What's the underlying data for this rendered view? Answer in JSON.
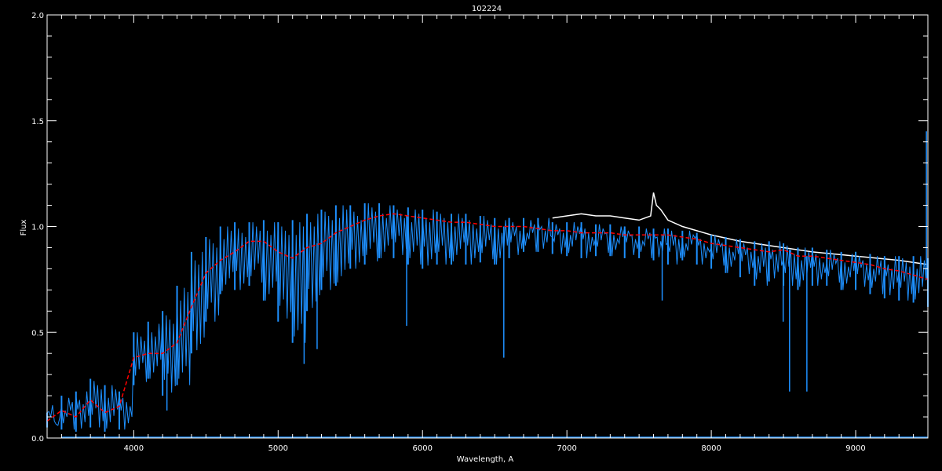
{
  "chart_data": {
    "type": "line",
    "title": "102224",
    "xlabel": "Wavelength, A",
    "ylabel": "Flux",
    "xlim": [
      3400,
      9500
    ],
    "ylim": [
      0.0,
      2.0
    ],
    "x_ticks": [
      4000,
      5000,
      6000,
      7000,
      8000,
      9000
    ],
    "x_tick_labels": [
      "4000",
      "5000",
      "6000",
      "7000",
      "8000",
      "9000"
    ],
    "y_ticks": [
      0.0,
      0.5,
      1.0,
      1.5,
      2.0
    ],
    "y_tick_labels": [
      "0.0",
      "0.5",
      "1.0",
      "1.5",
      "2.0"
    ],
    "grid": false,
    "background": "#000000",
    "colors": {
      "observed": "#1e90ff",
      "reference": "#ffffff",
      "smoothed": "#ff0000",
      "axes": "#ffffff"
    },
    "x": [
      3400,
      3500,
      3600,
      3700,
      3800,
      3900,
      4000,
      4100,
      4200,
      4300,
      4400,
      4500,
      4600,
      4700,
      4800,
      4900,
      5000,
      5100,
      5200,
      5300,
      5400,
      5500,
      5600,
      5700,
      5800,
      5900,
      6000,
      6100,
      6200,
      6300,
      6400,
      6500,
      6600,
      6700,
      6800,
      6900,
      7000,
      7100,
      7200,
      7300,
      7400,
      7500,
      7600,
      7700,
      7800,
      7900,
      8000,
      8100,
      8200,
      8300,
      8400,
      8500,
      8600,
      8700,
      8800,
      8900,
      9000,
      9100,
      9200,
      9300,
      9400,
      9500
    ],
    "series": [
      {
        "style": "dashed red",
        "values": [
          0.08,
          0.13,
          0.1,
          0.18,
          0.12,
          0.15,
          0.38,
          0.4,
          0.4,
          0.45,
          0.62,
          0.78,
          0.84,
          0.88,
          0.93,
          0.93,
          0.88,
          0.85,
          0.9,
          0.92,
          0.97,
          1.0,
          1.03,
          1.05,
          1.06,
          1.05,
          1.04,
          1.03,
          1.02,
          1.02,
          1.01,
          1.0,
          1.0,
          1.0,
          0.99,
          0.98,
          0.98,
          0.97,
          0.97,
          0.97,
          0.96,
          0.96,
          0.96,
          0.96,
          0.95,
          0.94,
          0.92,
          0.91,
          0.9,
          0.89,
          0.88,
          0.89,
          0.86,
          0.86,
          0.85,
          0.84,
          0.83,
          0.82,
          0.8,
          0.79,
          0.77,
          0.75
        ]
      },
      {
        "style": "noisy blue",
        "low": [
          0.05,
          0.04,
          0.03,
          0.05,
          0.03,
          0.04,
          0.25,
          0.28,
          0.2,
          0.25,
          0.4,
          0.55,
          0.68,
          0.7,
          0.72,
          0.65,
          0.55,
          0.45,
          0.6,
          0.7,
          0.72,
          0.8,
          0.82,
          0.85,
          0.85,
          0.82,
          0.8,
          0.82,
          0.82,
          0.82,
          0.83,
          0.82,
          0.85,
          0.88,
          0.88,
          0.87,
          0.86,
          0.85,
          0.86,
          0.86,
          0.85,
          0.85,
          0.84,
          0.82,
          0.84,
          0.82,
          0.8,
          0.78,
          0.76,
          0.72,
          0.74,
          0.72,
          0.7,
          0.72,
          0.72,
          0.7,
          0.7,
          0.68,
          0.66,
          0.65,
          0.64,
          0.62
        ],
        "high": [
          0.12,
          0.2,
          0.22,
          0.28,
          0.25,
          0.22,
          0.5,
          0.55,
          0.6,
          0.72,
          0.88,
          0.95,
          1.0,
          1.02,
          1.02,
          1.03,
          1.02,
          1.03,
          1.06,
          1.08,
          1.1,
          1.1,
          1.11,
          1.11,
          1.1,
          1.09,
          1.08,
          1.07,
          1.06,
          1.06,
          1.05,
          1.04,
          1.04,
          1.04,
          1.04,
          1.02,
          1.02,
          1.02,
          1.01,
          1.01,
          1.0,
          1.0,
          0.99,
          0.99,
          0.98,
          0.97,
          0.96,
          0.95,
          0.94,
          0.93,
          0.93,
          0.92,
          0.9,
          0.9,
          0.89,
          0.88,
          0.88,
          0.87,
          0.86,
          0.86,
          0.86,
          0.85
        ],
        "absorption_lines": [
          [
            4230,
            0.13
          ],
          [
            5180,
            0.35
          ],
          [
            5270,
            0.42
          ],
          [
            5890,
            0.53
          ],
          [
            6563,
            0.38
          ],
          [
            7660,
            0.65
          ],
          [
            8498,
            0.55
          ],
          [
            8542,
            0.22
          ],
          [
            8662,
            0.22
          ],
          [
            9490,
            1.45
          ]
        ]
      },
      {
        "style": "white",
        "points": [
          [
            6900,
            1.04
          ],
          [
            7000,
            1.05
          ],
          [
            7100,
            1.06
          ],
          [
            7200,
            1.05
          ],
          [
            7300,
            1.05
          ],
          [
            7400,
            1.04
          ],
          [
            7500,
            1.03
          ],
          [
            7580,
            1.05
          ],
          [
            7600,
            1.16
          ],
          [
            7620,
            1.1
          ],
          [
            7650,
            1.08
          ],
          [
            7700,
            1.03
          ],
          [
            7800,
            1.0
          ],
          [
            8000,
            0.96
          ],
          [
            8200,
            0.93
          ],
          [
            8500,
            0.9
          ],
          [
            8700,
            0.88
          ],
          [
            9000,
            0.86
          ],
          [
            9300,
            0.84
          ],
          [
            9500,
            0.82
          ]
        ]
      }
    ]
  }
}
